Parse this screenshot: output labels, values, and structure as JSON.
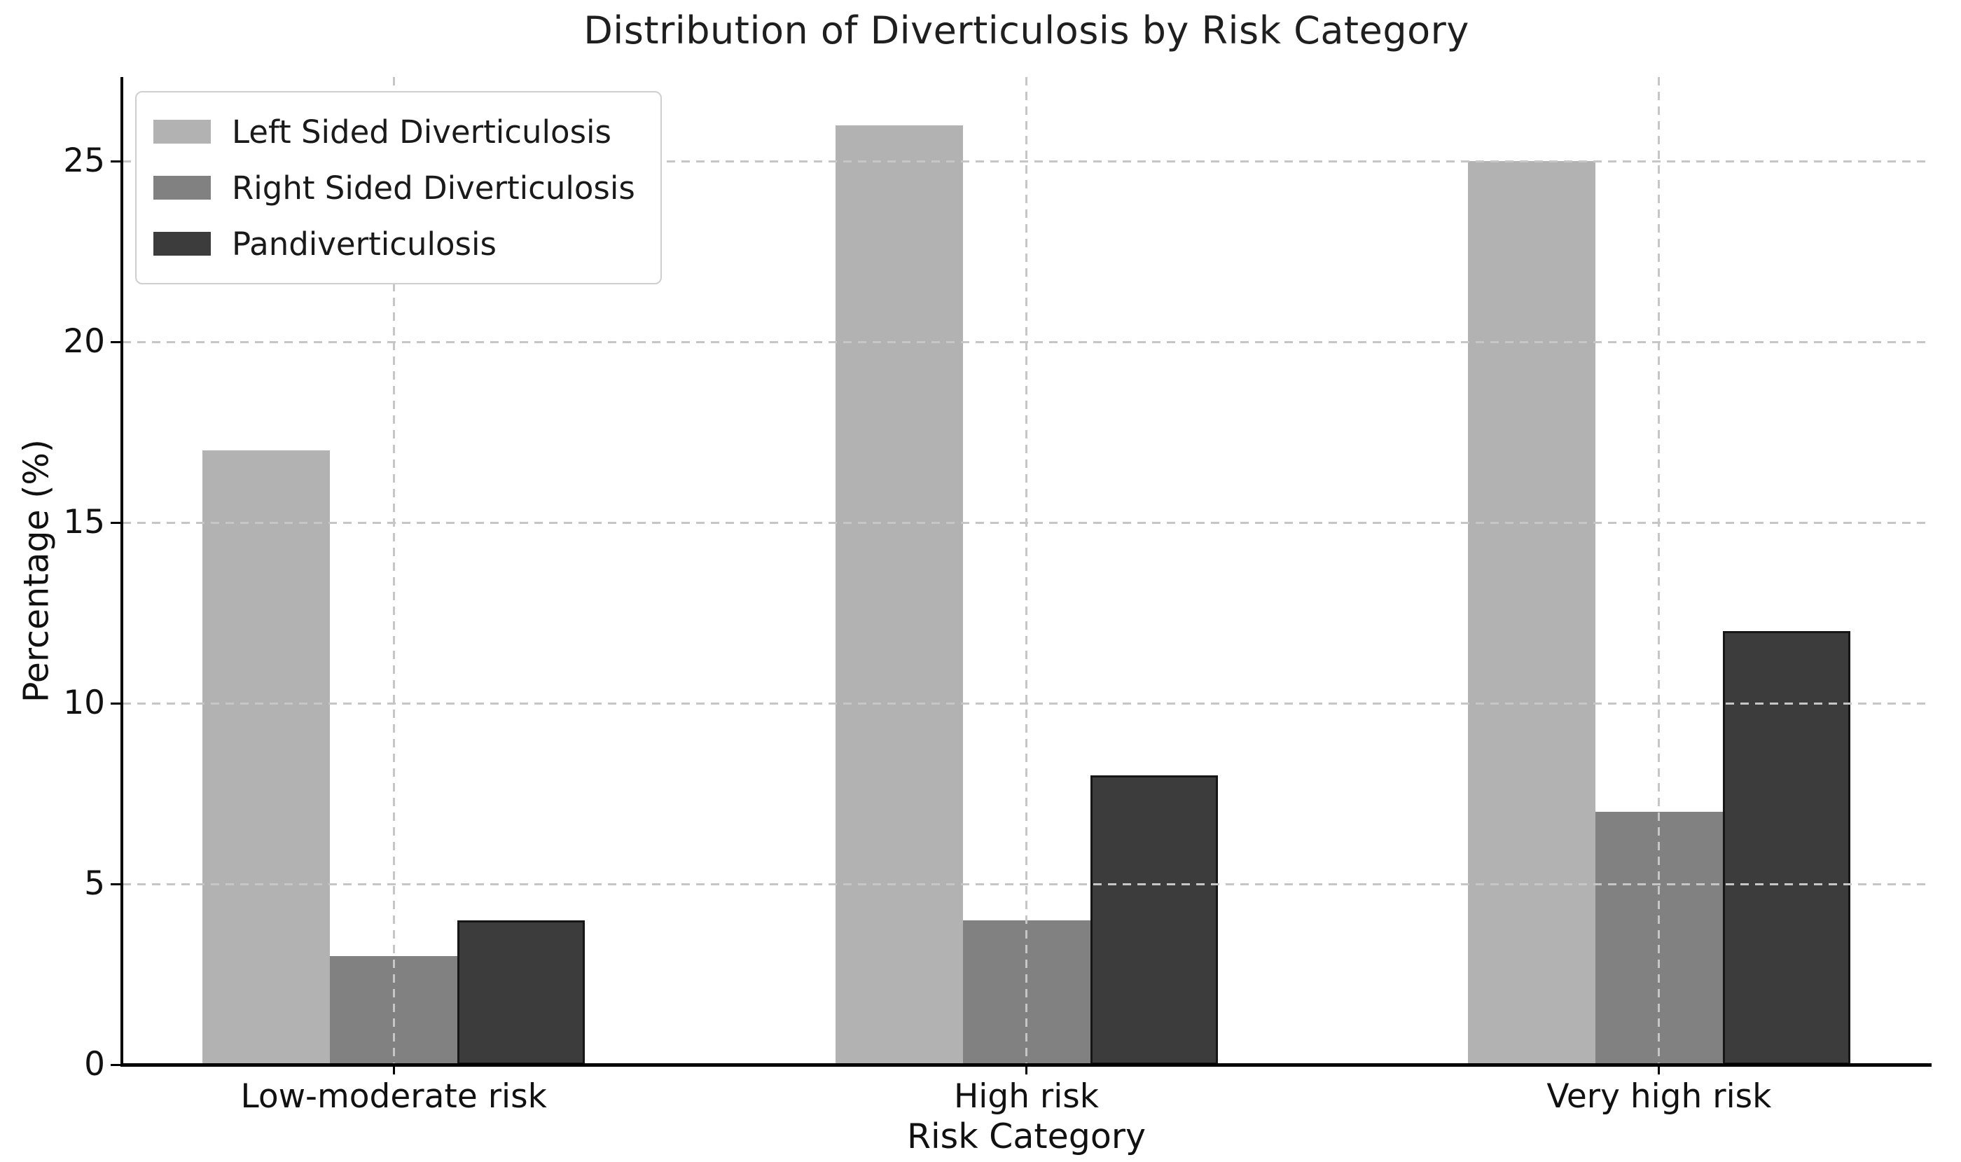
{
  "figure": {
    "background": "#ffffff"
  },
  "chart_data": {
    "type": "bar",
    "title": "Distribution of Diverticulosis by Risk Category",
    "xlabel": "Risk Category",
    "ylabel": "Percentage (%)",
    "categories": [
      "Low-moderate risk",
      "High risk",
      "Very high risk"
    ],
    "series": [
      {
        "name": "Left Sided Diverticulosis",
        "color": "#b2b2b2",
        "edgecolor": null,
        "values": [
          17,
          26,
          25
        ]
      },
      {
        "name": "Right Sided Diverticulosis",
        "color": "#818181",
        "edgecolor": null,
        "values": [
          3,
          4,
          7
        ]
      },
      {
        "name": "Pandiverticulosis",
        "color": "#3c3c3c",
        "edgecolor": "#161616",
        "values": [
          4,
          8,
          12
        ]
      }
    ],
    "y_ticks": [
      0,
      5,
      10,
      15,
      20,
      25
    ],
    "ylim": [
      0,
      27.33
    ],
    "grid": "dashed-both-axes",
    "grid_color": "#c6c6c6",
    "legend_position": "upper left",
    "axis_color": "#000000"
  }
}
